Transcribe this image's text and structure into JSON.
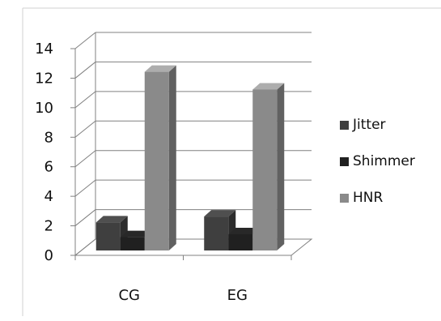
{
  "chart_data": {
    "type": "bar",
    "categories": [
      "CG",
      "EG"
    ],
    "series": [
      {
        "name": "Jitter",
        "values": [
          1.9,
          2.3
        ],
        "color": "#3f3f3f"
      },
      {
        "name": "Shimmer",
        "values": [
          0.9,
          1.1
        ],
        "color": "#202020"
      },
      {
        "name": "HNR",
        "values": [
          12.1,
          10.9
        ],
        "color": "#8a8a8a"
      }
    ],
    "yticks": [
      "0",
      "2",
      "4",
      "6",
      "8",
      "10",
      "12",
      "14"
    ],
    "ylim": [
      0,
      14
    ],
    "legend_position": "right",
    "grid": true,
    "style": "3d-column"
  }
}
